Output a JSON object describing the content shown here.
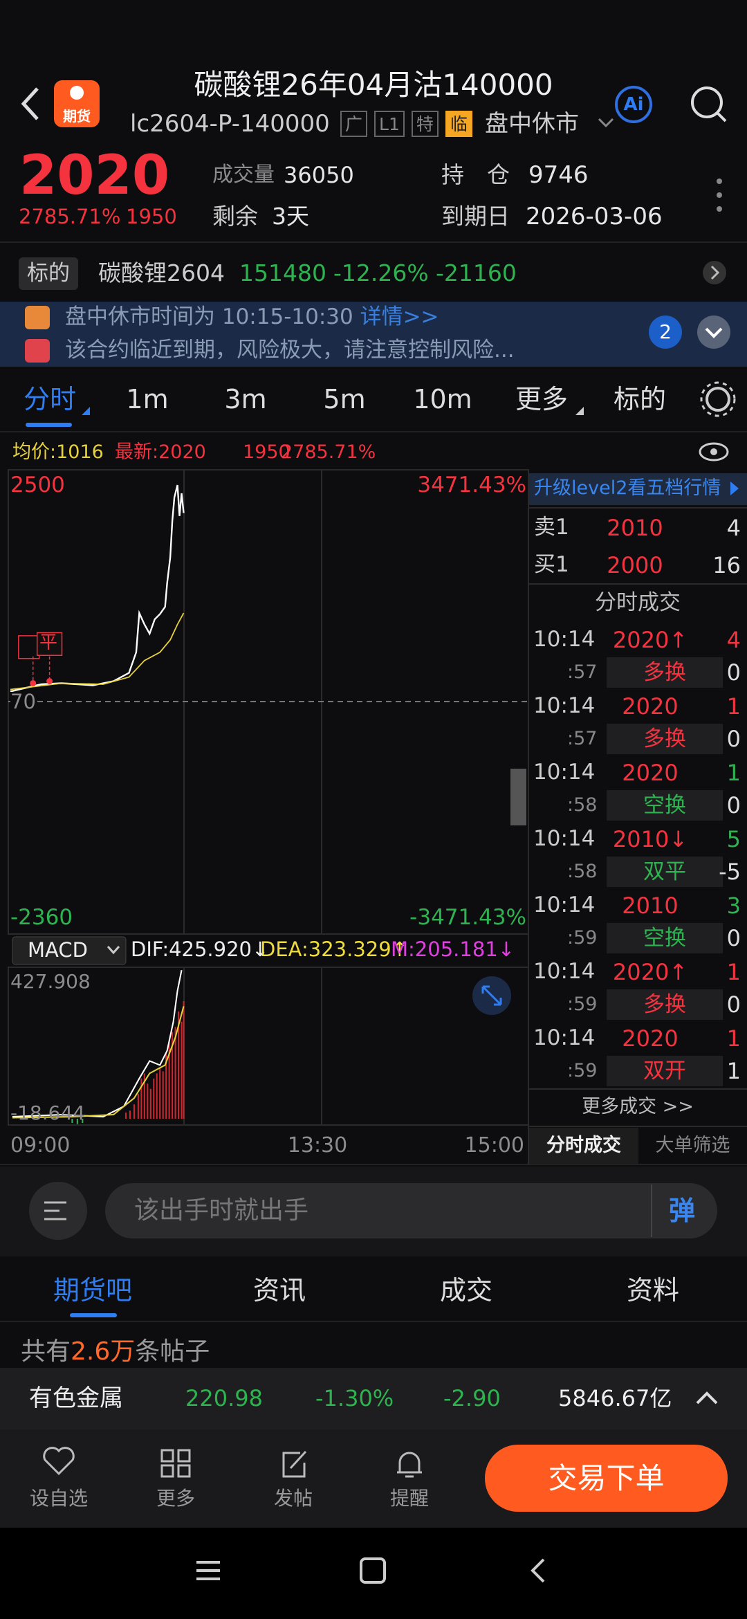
{
  "header": {
    "icon_label": "期货",
    "title": "碳酸锂26年04月沽140000",
    "code": "lc2604-P-140000",
    "tags": [
      "广",
      "L1",
      "特",
      "临"
    ],
    "status": "盘中休市",
    "ai": "Ai"
  },
  "quote": {
    "price": "2020",
    "change_pct": "2785.71%",
    "change": "1950",
    "volume_label": "成交量",
    "volume": "36050",
    "remaining_label": "剩余",
    "remaining": "3天",
    "oi_label": "持　仓",
    "oi": "9746",
    "expiry_label": "到期日",
    "expiry": "2026-03-06"
  },
  "underlying": {
    "label": "标的",
    "name": "碳酸锂2604",
    "price": "151480",
    "pct": "-12.26%",
    "change": "-21160"
  },
  "notices": {
    "items": [
      {
        "text": "盘中休市时间为 10:15-10:30",
        "link": "详情>>"
      },
      {
        "text": "该合约临近到期，风险极大，请注意控制风险..."
      }
    ],
    "badge": "2"
  },
  "tabs": [
    "分时",
    "1m",
    "3m",
    "5m",
    "10m",
    "更多",
    "标的"
  ],
  "info": {
    "avg": "均价:1016",
    "last": "最新:2020",
    "change": "1950",
    "pct": "2785.71%"
  },
  "chart": {
    "y_top": "2500",
    "pct_top": "3471.43%",
    "base": "70",
    "y_bottom": "-2360",
    "pct_bottom": "-3471.43%",
    "marker": "平"
  },
  "macd": {
    "selector": "MACD",
    "dif": "DIF:425.920↓",
    "dea": "DEA:323.329↑",
    "m": "M:205.181↓",
    "top": "427.908",
    "bottom": "-18.644"
  },
  "time_axis": [
    "09:00",
    "13:30",
    "15:00"
  ],
  "side": {
    "banner": "升级level2看五档行情",
    "ask": {
      "label": "卖1",
      "price": "2010",
      "vol": "4"
    },
    "bid": {
      "label": "买1",
      "price": "2000",
      "vol": "16"
    },
    "title": "分时成交",
    "trades": [
      {
        "time": "10:14",
        "sec": ":57",
        "price": "2020↑",
        "vol": "4",
        "type": "多换",
        "oi": "0",
        "color": "#f5333f"
      },
      {
        "time": "10:14",
        "sec": ":57",
        "price": "2020",
        "vol": "1",
        "type": "多换",
        "oi": "0",
        "color": "#f5333f"
      },
      {
        "time": "10:14",
        "sec": ":58",
        "price": "2020",
        "vol": "1",
        "type": "空换",
        "oi": "0",
        "color": "#2fb350"
      },
      {
        "time": "10:14",
        "sec": ":58",
        "price": "2010↓",
        "vol": "5",
        "type": "双平",
        "oi": "-5",
        "color": "#2fb350"
      },
      {
        "time": "10:14",
        "sec": ":59",
        "price": "2010",
        "vol": "3",
        "type": "空换",
        "oi": "0",
        "color": "#2fb350"
      },
      {
        "time": "10:14",
        "sec": ":59",
        "price": "2020↑",
        "vol": "1",
        "type": "多换",
        "oi": "0",
        "color": "#f5333f"
      },
      {
        "time": "10:14",
        "sec": ":59",
        "price": "2020",
        "vol": "1",
        "type": "双开",
        "oi": "1",
        "color": "#f5333f"
      }
    ],
    "more": "更多成交 >>",
    "tabs": [
      "分时成交",
      "大单筛选"
    ]
  },
  "comment": {
    "placeholder": "该出手时就出手",
    "button": "弹"
  },
  "section_tabs": [
    "期货吧",
    "资讯",
    "成交",
    "资料"
  ],
  "posts": {
    "prefix": "共有",
    "count": "2.6万",
    "suffix": "条帖子"
  },
  "sector": {
    "name": "有色金属",
    "price": "220.98",
    "pct": "-1.30%",
    "change": "-2.90",
    "amount": "5846.67亿"
  },
  "nav": [
    "设自选",
    "更多",
    "发帖",
    "提醒"
  ],
  "trade_button": "交易下单"
}
